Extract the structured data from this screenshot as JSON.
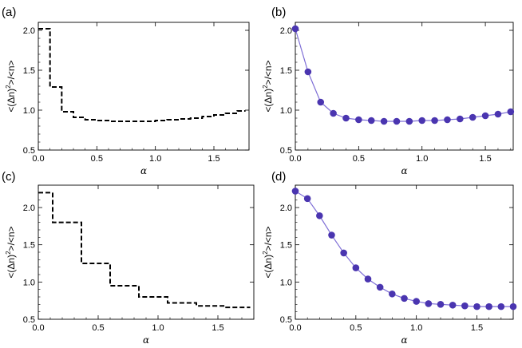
{
  "chart_data": [
    {
      "panel_label": "(a)",
      "type": "line",
      "style": "step-dashed",
      "color": "#000000",
      "ylabel_parts": [
        "<(Δn)",
        "2",
        ">/<n>"
      ],
      "xlabel": "α",
      "xlim": [
        0,
        1.8
      ],
      "ylim": [
        0.5,
        2.1
      ],
      "xticks": [
        "0.0",
        "0.5",
        "1.0",
        "1.5"
      ],
      "yticks": [
        "0.5",
        "1.0",
        "1.5",
        "2.0"
      ],
      "x": [
        0.0,
        0.1,
        0.2,
        0.3,
        0.4,
        0.5,
        0.6,
        0.7,
        0.8,
        0.9,
        1.0,
        1.1,
        1.2,
        1.3,
        1.4,
        1.5,
        1.6,
        1.7,
        1.77
      ],
      "y": [
        2.02,
        1.29,
        0.98,
        0.91,
        0.88,
        0.87,
        0.86,
        0.86,
        0.86,
        0.86,
        0.87,
        0.88,
        0.89,
        0.9,
        0.92,
        0.94,
        0.96,
        0.99,
        0.99
      ]
    },
    {
      "panel_label": "(b)",
      "type": "line",
      "style": "line-markers",
      "color": "#4a35b0",
      "line_color": "#7f6fd6",
      "ylabel_parts": [
        "<(Δn)",
        "2",
        ">/<n>"
      ],
      "xlabel": "α",
      "xlim": [
        0,
        1.72
      ],
      "ylim": [
        0.5,
        2.1
      ],
      "xticks": [
        "0.0",
        "0.5",
        "1.0",
        "1.5"
      ],
      "yticks": [
        "0.5",
        "1.0",
        "1.5",
        "2.0"
      ],
      "x": [
        0.0,
        0.1,
        0.2,
        0.3,
        0.4,
        0.5,
        0.6,
        0.7,
        0.8,
        0.9,
        1.0,
        1.1,
        1.2,
        1.3,
        1.4,
        1.5,
        1.6,
        1.7
      ],
      "y": [
        2.02,
        1.48,
        1.1,
        0.96,
        0.9,
        0.88,
        0.87,
        0.86,
        0.86,
        0.86,
        0.87,
        0.87,
        0.88,
        0.89,
        0.91,
        0.93,
        0.95,
        0.98
      ]
    },
    {
      "panel_label": "(c)",
      "type": "line",
      "style": "step-dashed",
      "color": "#000000",
      "ylabel_parts": [
        "<(Δn)",
        "2",
        ">/<n>"
      ],
      "xlabel": "α",
      "xlim": [
        0,
        1.8
      ],
      "ylim": [
        0.5,
        2.3
      ],
      "xticks": [
        "0.0",
        "0.5",
        "1.0",
        "1.5"
      ],
      "yticks": [
        "0.5",
        "1.0",
        "1.5",
        "2.0"
      ],
      "x": [
        0.0,
        0.12,
        0.36,
        0.6,
        0.84,
        1.08,
        1.32,
        1.56,
        1.77
      ],
      "y": [
        2.2,
        1.8,
        1.25,
        0.95,
        0.8,
        0.72,
        0.68,
        0.66,
        0.66
      ]
    },
    {
      "panel_label": "(d)",
      "type": "line",
      "style": "line-markers",
      "color": "#4a35b0",
      "line_color": "#7f6fd6",
      "ylabel_parts": [
        "<(Δn)",
        "2",
        ">/<n>"
      ],
      "xlabel": "α",
      "xlim": [
        0,
        1.8
      ],
      "ylim": [
        0.5,
        2.3
      ],
      "xticks": [
        "0.0",
        "0.5",
        "1.0",
        "1.5"
      ],
      "yticks": [
        "0.5",
        "1.0",
        "1.5",
        "2.0"
      ],
      "x": [
        0.0,
        0.1,
        0.2,
        0.3,
        0.4,
        0.5,
        0.6,
        0.7,
        0.8,
        0.9,
        1.0,
        1.1,
        1.2,
        1.3,
        1.4,
        1.5,
        1.6,
        1.7,
        1.8
      ],
      "y": [
        2.22,
        2.12,
        1.89,
        1.63,
        1.39,
        1.19,
        1.04,
        0.93,
        0.84,
        0.78,
        0.74,
        0.71,
        0.7,
        0.69,
        0.68,
        0.67,
        0.67,
        0.67,
        0.67
      ]
    }
  ]
}
